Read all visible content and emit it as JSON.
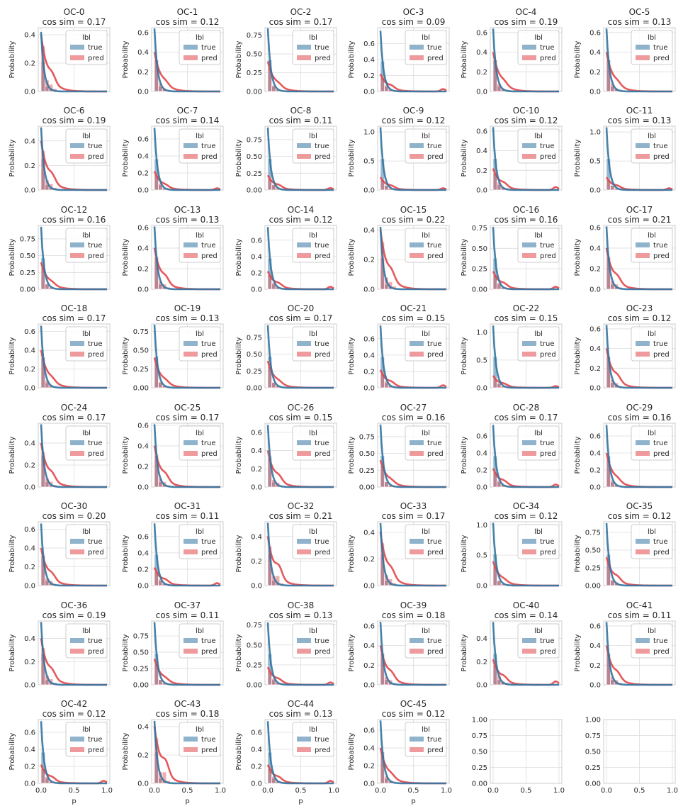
{
  "chart_data": {
    "type": "histogram",
    "layout": {
      "rows": 8,
      "cols": 6
    },
    "series_colors": {
      "true": "#3274a1",
      "pred": "#e1474a"
    },
    "legend": {
      "title": "lbl",
      "entries": [
        "true",
        "pred"
      ],
      "placement": "upper-right"
    },
    "shared": {
      "xlabel": "p",
      "ylabel": "Probability",
      "xlim": [
        0,
        1
      ],
      "xticks": [
        "0.0",
        "0.5",
        "1.0"
      ],
      "grid": true
    },
    "panels": [
      {
        "title": "OC-0",
        "subtitle": "cos sim = 0.17",
        "ymax": 0.45,
        "yticks": [
          "0.0",
          "0.2",
          "0.4"
        ],
        "kde_true_peak": 0.42,
        "kde_pred_peak": 0.4,
        "pred_bump": 0.05
      },
      {
        "title": "OC-1",
        "subtitle": "cos sim = 0.12",
        "ymax": 0.65,
        "yticks": [
          "0.0",
          "0.2",
          "0.4",
          "0.6"
        ],
        "kde_true_peak": 0.64,
        "kde_pred_peak": 0.4,
        "pred_bump": 0.03
      },
      {
        "title": "OC-2",
        "subtitle": "cos sim = 0.17",
        "ymax": 0.85,
        "yticks": [
          "0.00",
          "0.25",
          "0.50",
          "0.75"
        ],
        "kde_true_peak": 0.84,
        "kde_pred_peak": 0.4,
        "pred_bump": 0.03
      },
      {
        "title": "OC-3",
        "subtitle": "cos sim = 0.09",
        "ymax": 0.8,
        "yticks": [
          "0.0",
          "0.2",
          "0.4",
          "0.6"
        ],
        "kde_true_peak": 0.76,
        "kde_pred_peak": 0.22,
        "pred_bump": 0.03
      },
      {
        "title": "OC-4",
        "subtitle": "cos sim = 0.19",
        "ymax": 0.65,
        "yticks": [
          "0.0",
          "0.2",
          "0.4",
          "0.6"
        ],
        "kde_true_peak": 0.64,
        "kde_pred_peak": 0.4,
        "pred_bump": 0.03
      },
      {
        "title": "OC-5",
        "subtitle": "cos sim = 0.13",
        "ymax": 0.65,
        "yticks": [
          "0.0",
          "0.2",
          "0.4",
          "0.6"
        ],
        "kde_true_peak": 0.64,
        "kde_pred_peak": 0.4,
        "pred_bump": 0.03
      },
      {
        "title": "OC-6",
        "subtitle": "cos sim = 0.19",
        "ymax": 0.52,
        "yticks": [
          "0.0",
          "0.2",
          "0.4"
        ],
        "kde_true_peak": 0.51,
        "kde_pred_peak": 0.4,
        "pred_bump": 0.05
      },
      {
        "title": "OC-7",
        "subtitle": "cos sim = 0.14",
        "ymax": 0.75,
        "yticks": [
          "0.0",
          "0.2",
          "0.4",
          "0.6"
        ],
        "kde_true_peak": 0.73,
        "kde_pred_peak": 0.22,
        "pred_bump": 0.02
      },
      {
        "title": "OC-8",
        "subtitle": "cos sim = 0.11",
        "ymax": 0.95,
        "yticks": [
          "0.00",
          "0.25",
          "0.50",
          "0.75"
        ],
        "kde_true_peak": 0.93,
        "kde_pred_peak": 0.22,
        "pred_bump": 0.03
      },
      {
        "title": "OC-9",
        "subtitle": "cos sim = 0.12",
        "ymax": 1.1,
        "yticks": [
          "0.0",
          "0.5",
          "1.0"
        ],
        "kde_true_peak": 1.08,
        "kde_pred_peak": 0.22,
        "pred_bump": 0.03
      },
      {
        "title": "OC-10",
        "subtitle": "cos sim = 0.12",
        "ymax": 0.65,
        "yticks": [
          "0.0",
          "0.2",
          "0.4",
          "0.6"
        ],
        "kde_true_peak": 0.64,
        "kde_pred_peak": 0.22,
        "pred_bump": 0.03
      },
      {
        "title": "OC-11",
        "subtitle": "cos sim = 0.13",
        "ymax": 1.1,
        "yticks": [
          "0.0",
          "0.5",
          "1.0"
        ],
        "kde_true_peak": 1.08,
        "kde_pred_peak": 0.22,
        "pred_bump": 0.03
      },
      {
        "title": "OC-12",
        "subtitle": "cos sim = 0.16",
        "ymax": 0.95,
        "yticks": [
          "0.00",
          "0.25",
          "0.50",
          "0.75"
        ],
        "kde_true_peak": 0.93,
        "kde_pred_peak": 0.4,
        "pred_bump": 0.03
      },
      {
        "title": "OC-13",
        "subtitle": "cos sim = 0.13",
        "ymax": 0.62,
        "yticks": [
          "0.0",
          "0.2",
          "0.4",
          "0.6"
        ],
        "kde_true_peak": 0.61,
        "kde_pred_peak": 0.4,
        "pred_bump": 0.05
      },
      {
        "title": "OC-14",
        "subtitle": "cos sim = 0.12",
        "ymax": 0.78,
        "yticks": [
          "0.0",
          "0.2",
          "0.4",
          "0.6"
        ],
        "kde_true_peak": 0.76,
        "kde_pred_peak": 0.22,
        "pred_bump": 0.03
      },
      {
        "title": "OC-15",
        "subtitle": "cos sim = 0.22",
        "ymax": 0.43,
        "yticks": [
          "0.0",
          "0.2",
          "0.4"
        ],
        "kde_true_peak": 0.42,
        "kde_pred_peak": 0.4,
        "pred_bump": 0.05
      },
      {
        "title": "OC-16",
        "subtitle": "cos sim = 0.16",
        "ymax": 0.78,
        "yticks": [
          "0.00",
          "0.25",
          "0.50",
          "0.75"
        ],
        "kde_true_peak": 0.76,
        "kde_pred_peak": 0.22,
        "pred_bump": 0.03
      },
      {
        "title": "OC-17",
        "subtitle": "cos sim = 0.21",
        "ymax": 0.62,
        "yticks": [
          "0.0",
          "0.2",
          "0.4",
          "0.6"
        ],
        "kde_true_peak": 0.61,
        "kde_pred_peak": 0.4,
        "pred_bump": 0.05
      },
      {
        "title": "OC-18",
        "subtitle": "cos sim = 0.17",
        "ymax": 0.68,
        "yticks": [
          "0.0",
          "0.2",
          "0.4",
          "0.6"
        ],
        "kde_true_peak": 0.66,
        "kde_pred_peak": 0.4,
        "pred_bump": 0.03
      },
      {
        "title": "OC-19",
        "subtitle": "cos sim = 0.13",
        "ymax": 0.85,
        "yticks": [
          "0.00",
          "0.25",
          "0.50",
          "0.75"
        ],
        "kde_true_peak": 0.84,
        "kde_pred_peak": 0.4,
        "pred_bump": 0.03
      },
      {
        "title": "OC-20",
        "subtitle": "cos sim = 0.17",
        "ymax": 0.95,
        "yticks": [
          "0.00",
          "0.25",
          "0.50",
          "0.75"
        ],
        "kde_true_peak": 0.93,
        "kde_pred_peak": 0.4,
        "pred_bump": 0.03
      },
      {
        "title": "OC-21",
        "subtitle": "cos sim = 0.15",
        "ymax": 0.78,
        "yticks": [
          "0.0",
          "0.2",
          "0.4",
          "0.6"
        ],
        "kde_true_peak": 0.76,
        "kde_pred_peak": 0.22,
        "pred_bump": 0.03
      },
      {
        "title": "OC-22",
        "subtitle": "cos sim = 0.15",
        "ymax": 1.15,
        "yticks": [
          "0.0",
          "0.5",
          "1.0"
        ],
        "kde_true_peak": 1.12,
        "kde_pred_peak": 0.22,
        "pred_bump": 0.03
      },
      {
        "title": "OC-23",
        "subtitle": "cos sim = 0.12",
        "ymax": 0.65,
        "yticks": [
          "0.0",
          "0.2",
          "0.4",
          "0.6"
        ],
        "kde_true_peak": 0.64,
        "kde_pred_peak": 0.4,
        "pred_bump": 0.05
      },
      {
        "title": "OC-24",
        "subtitle": "cos sim = 0.17",
        "ymax": 0.58,
        "yticks": [
          "0.0",
          "0.2",
          "0.4"
        ],
        "kde_true_peak": 0.57,
        "kde_pred_peak": 0.4,
        "pred_bump": 0.05
      },
      {
        "title": "OC-25",
        "subtitle": "cos sim = 0.17",
        "ymax": 0.62,
        "yticks": [
          "0.0",
          "0.2",
          "0.4",
          "0.6"
        ],
        "kde_true_peak": 0.61,
        "kde_pred_peak": 0.4,
        "pred_bump": 0.05
      },
      {
        "title": "OC-26",
        "subtitle": "cos sim = 0.15",
        "ymax": 0.7,
        "yticks": [
          "0.0",
          "0.2",
          "0.4",
          "0.6"
        ],
        "kde_true_peak": 0.68,
        "kde_pred_peak": 0.4,
        "pred_bump": 0.05
      },
      {
        "title": "OC-27",
        "subtitle": "cos sim = 0.16",
        "ymax": 0.95,
        "yticks": [
          "0.00",
          "0.25",
          "0.50",
          "0.75"
        ],
        "kde_true_peak": 0.93,
        "kde_pred_peak": 0.4,
        "pred_bump": 0.03
      },
      {
        "title": "OC-28",
        "subtitle": "cos sim = 0.17",
        "ymax": 0.75,
        "yticks": [
          "0.0",
          "0.2",
          "0.4",
          "0.6"
        ],
        "kde_true_peak": 0.73,
        "kde_pred_peak": 0.22,
        "pred_bump": 0.03
      },
      {
        "title": "OC-29",
        "subtitle": "cos sim = 0.16",
        "ymax": 0.75,
        "yticks": [
          "0.0",
          "0.2",
          "0.4",
          "0.6"
        ],
        "kde_true_peak": 0.73,
        "kde_pred_peak": 0.4,
        "pred_bump": 0.03
      },
      {
        "title": "OC-30",
        "subtitle": "cos sim = 0.20",
        "ymax": 0.68,
        "yticks": [
          "0.0",
          "0.2",
          "0.4",
          "0.6"
        ],
        "kde_true_peak": 0.66,
        "kde_pred_peak": 0.4,
        "pred_bump": 0.05
      },
      {
        "title": "OC-31",
        "subtitle": "cos sim = 0.11",
        "ymax": 0.78,
        "yticks": [
          "0.0",
          "0.2",
          "0.4",
          "0.6"
        ],
        "kde_true_peak": 0.76,
        "kde_pred_peak": 0.22,
        "pred_bump": 0.03
      },
      {
        "title": "OC-32",
        "subtitle": "cos sim = 0.21",
        "ymax": 0.52,
        "yticks": [
          "0.0",
          "0.2",
          "0.4"
        ],
        "kde_true_peak": 0.51,
        "kde_pred_peak": 0.4,
        "pred_bump": 0.08
      },
      {
        "title": "OC-33",
        "subtitle": "cos sim = 0.17",
        "ymax": 0.48,
        "yticks": [
          "0.0",
          "0.2",
          "0.4"
        ],
        "kde_true_peak": 0.47,
        "kde_pred_peak": 0.4,
        "pred_bump": 0.05
      },
      {
        "title": "OC-34",
        "subtitle": "cos sim = 0.12",
        "ymax": 1.05,
        "yticks": [
          "0.0",
          "0.5",
          "1.0"
        ],
        "kde_true_peak": 1.03,
        "kde_pred_peak": 0.4,
        "pred_bump": 0.03
      },
      {
        "title": "OC-35",
        "subtitle": "cos sim = 0.12",
        "ymax": 0.9,
        "yticks": [
          "0.00",
          "0.25",
          "0.50",
          "0.75"
        ],
        "kde_true_peak": 0.88,
        "kde_pred_peak": 0.4,
        "pred_bump": 0.05
      },
      {
        "title": "OC-36",
        "subtitle": "cos sim = 0.19",
        "ymax": 0.55,
        "yticks": [
          "0.0",
          "0.2",
          "0.4"
        ],
        "kde_true_peak": 0.54,
        "kde_pred_peak": 0.4,
        "pred_bump": 0.05
      },
      {
        "title": "OC-37",
        "subtitle": "cos sim = 0.11",
        "ymax": 0.98,
        "yticks": [
          "0.00",
          "0.25",
          "0.50",
          "0.75"
        ],
        "kde_true_peak": 0.96,
        "kde_pred_peak": 0.4,
        "pred_bump": 0.03
      },
      {
        "title": "OC-38",
        "subtitle": "cos sim = 0.13",
        "ymax": 0.8,
        "yticks": [
          "0.00",
          "0.25",
          "0.50",
          "0.75"
        ],
        "kde_true_peak": 0.78,
        "kde_pred_peak": 0.22,
        "pred_bump": 0.03
      },
      {
        "title": "OC-39",
        "subtitle": "cos sim = 0.18",
        "ymax": 0.65,
        "yticks": [
          "0.0",
          "0.2",
          "0.4",
          "0.6"
        ],
        "kde_true_peak": 0.64,
        "kde_pred_peak": 0.4,
        "pred_bump": 0.05
      },
      {
        "title": "OC-40",
        "subtitle": "cos sim = 0.14",
        "ymax": 0.55,
        "yticks": [
          "0.0",
          "0.2",
          "0.4"
        ],
        "kde_true_peak": 0.54,
        "kde_pred_peak": 0.22,
        "pred_bump": 0.03
      },
      {
        "title": "OC-41",
        "subtitle": "cos sim = 0.11",
        "ymax": 0.65,
        "yticks": [
          "0.0",
          "0.2",
          "0.4",
          "0.6"
        ],
        "kde_true_peak": 0.64,
        "kde_pred_peak": 0.4,
        "pred_bump": 0.05
      },
      {
        "title": "OC-42",
        "subtitle": "cos sim = 0.12",
        "ymax": 0.75,
        "yticks": [
          "0.0",
          "0.2",
          "0.4",
          "0.6"
        ],
        "kde_true_peak": 0.73,
        "kde_pred_peak": 0.22,
        "pred_bump": 0.03
      },
      {
        "title": "OC-43",
        "subtitle": "cos sim = 0.18",
        "ymax": 0.45,
        "yticks": [
          "0.0",
          "0.2",
          "0.4"
        ],
        "kde_true_peak": 0.44,
        "kde_pred_peak": 0.4,
        "pred_bump": 0.08
      },
      {
        "title": "OC-44",
        "subtitle": "cos sim = 0.13",
        "ymax": 0.75,
        "yticks": [
          "0.0",
          "0.2",
          "0.4",
          "0.6"
        ],
        "kde_true_peak": 0.73,
        "kde_pred_peak": 0.22,
        "pred_bump": 0.03
      },
      {
        "title": "OC-45",
        "subtitle": "cos sim = 0.12",
        "ymax": 0.72,
        "yticks": [
          "0.0",
          "0.2",
          "0.4",
          "0.6"
        ],
        "kde_true_peak": 0.71,
        "kde_pred_peak": 0.4,
        "pred_bump": 0.03
      }
    ],
    "empty_panels": [
      {
        "ylim": [
          0,
          1
        ],
        "yticks": [
          "0.00",
          "0.25",
          "0.50",
          "0.75",
          "1.00"
        ],
        "xticks": [
          "0.0",
          "0.5",
          "1.0"
        ]
      },
      {
        "ylim": [
          0,
          1
        ],
        "yticks": [
          "0.00",
          "0.25",
          "0.50",
          "0.75",
          "1.00"
        ],
        "xticks": [
          "0.0",
          "0.5",
          "1.0"
        ]
      }
    ]
  }
}
